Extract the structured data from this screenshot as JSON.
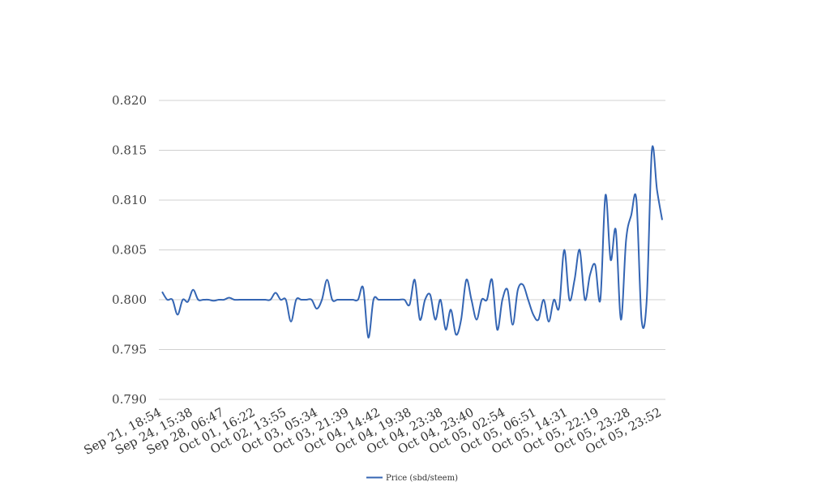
{
  "chart_data": {
    "type": "line",
    "title": "",
    "xlabel": "",
    "ylabel": "",
    "ylim": [
      0.79,
      0.82
    ],
    "y_ticks": [
      "0.790",
      "0.795",
      "0.800",
      "0.805",
      "0.810",
      "0.815",
      "0.820"
    ],
    "x_tick_labels": [
      "Sep 21, 18:54",
      "Sep 24, 15:38",
      "Sep 28, 06:47",
      "Oct 01, 16:22",
      "Oct 02, 13:55",
      "Oct 03, 05:34",
      "Oct 03, 21:39",
      "Oct 04, 14:42",
      "Oct 04, 19:38",
      "Oct 04, 23:38",
      "Oct 04, 23:40",
      "Oct 05, 02:54",
      "Oct 05, 06:51",
      "Oct 05, 14:31",
      "Oct 05, 22:19",
      "Oct 05, 23:28",
      "Oct 05, 23:52"
    ],
    "grid": true,
    "legend_position": "bottom-center",
    "series": [
      {
        "name": "Price (sbd/steem)",
        "color": "#3465b3",
        "values": [
          0.8008,
          0.8,
          0.8,
          0.7985,
          0.8,
          0.7998,
          0.801,
          0.8,
          0.8,
          0.8,
          0.7999,
          0.8,
          0.8,
          0.8002,
          0.8,
          0.8,
          0.8,
          0.8,
          0.8,
          0.8,
          0.8,
          0.8,
          0.8007,
          0.8,
          0.8,
          0.7978,
          0.8,
          0.8,
          0.8,
          0.8,
          0.7991,
          0.8,
          0.802,
          0.8,
          0.8,
          0.8,
          0.8,
          0.8,
          0.8,
          0.8012,
          0.7962,
          0.8,
          0.8,
          0.8,
          0.8,
          0.8,
          0.8,
          0.8,
          0.7995,
          0.802,
          0.798,
          0.8,
          0.8005,
          0.798,
          0.8,
          0.797,
          0.799,
          0.7965,
          0.798,
          0.802,
          0.8,
          0.798,
          0.8,
          0.8,
          0.802,
          0.797,
          0.8,
          0.801,
          0.7975,
          0.801,
          0.8015,
          0.8,
          0.7985,
          0.798,
          0.8,
          0.7978,
          0.8,
          0.7992,
          0.805,
          0.8,
          0.802,
          0.805,
          0.8,
          0.8025,
          0.8035,
          0.8,
          0.8105,
          0.804,
          0.807,
          0.798,
          0.806,
          0.8085,
          0.81,
          0.798,
          0.8,
          0.815,
          0.811,
          0.808
        ]
      }
    ]
  }
}
